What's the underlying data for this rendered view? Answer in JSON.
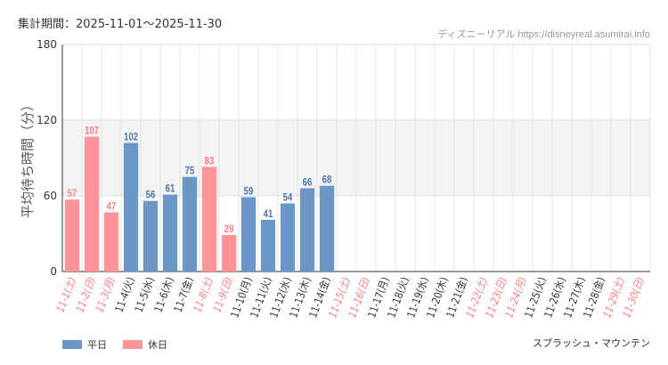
{
  "header": {
    "period_label": "集計期間：",
    "period_range": "2025-11-01～2025-11-30",
    "source": "ディズニーリアル https://disneyreal.asumirai.info"
  },
  "attraction": "スプラッシュ・マウンテン",
  "legend": {
    "weekday_label": "平日",
    "holiday_label": "休日"
  },
  "colors": {
    "weekday": "#6a96c8",
    "holiday": "#ff9498",
    "weekday_text": "#4a76a8",
    "holiday_text": "#ff7a80"
  },
  "chart_data": {
    "type": "bar",
    "ylabel": "平均待ち時間（分）",
    "ylim": [
      0,
      180
    ],
    "yticks": [
      0,
      60,
      120,
      180
    ],
    "shaded_band": [
      60,
      120
    ],
    "categories": [
      "11-1(土)",
      "11-2(日)",
      "11-3(月)",
      "11-4(火)",
      "11-5(水)",
      "11-6(木)",
      "11-7(金)",
      "11-8(土)",
      "11-9(日)",
      "11-10(月)",
      "11-11(火)",
      "11-12(水)",
      "11-13(木)",
      "11-14(金)",
      "11-15(土)",
      "11-16(日)",
      "11-17(月)",
      "11-18(火)",
      "11-19(水)",
      "11-20(木)",
      "11-21(金)",
      "11-22(土)",
      "11-23(日)",
      "11-24(月)",
      "11-25(火)",
      "11-26(水)",
      "11-27(木)",
      "11-28(金)",
      "11-29(土)",
      "11-30(日)"
    ],
    "holiday": [
      true,
      true,
      true,
      false,
      false,
      false,
      false,
      true,
      true,
      false,
      false,
      false,
      false,
      false,
      true,
      true,
      false,
      false,
      false,
      false,
      false,
      true,
      true,
      true,
      false,
      false,
      false,
      false,
      true,
      true
    ],
    "values": [
      57,
      107,
      47,
      102,
      56,
      61,
      75,
      83,
      29,
      59,
      41,
      54,
      66,
      68,
      null,
      null,
      null,
      null,
      null,
      null,
      null,
      null,
      null,
      null,
      null,
      null,
      null,
      null,
      null,
      null
    ]
  }
}
